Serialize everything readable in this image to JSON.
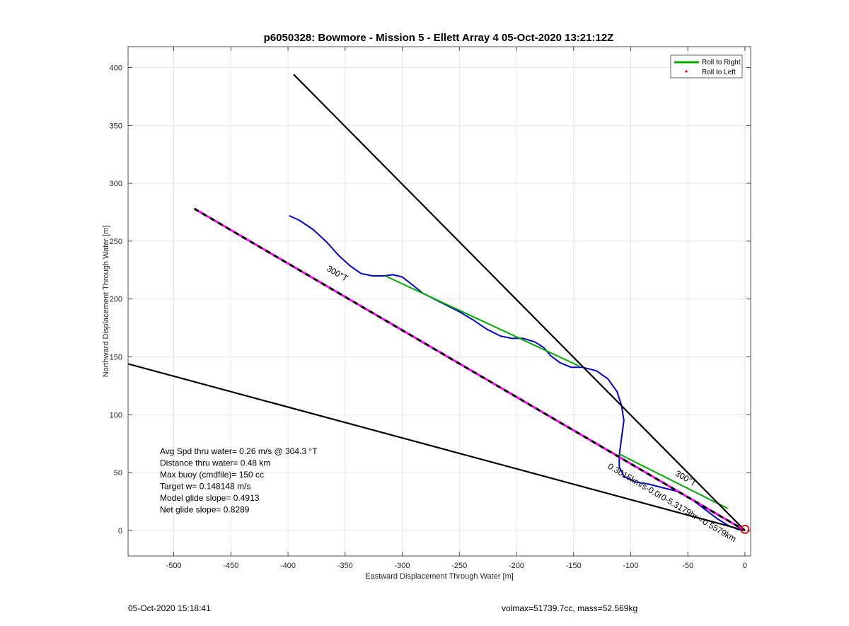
{
  "chart_data": {
    "type": "line",
    "title": "p6050328: Bowmore - Mission 5 - Ellett Array 4 05-Oct-2020 13:21:12Z",
    "xlabel": "Eastward Displacement Through Water [m]",
    "ylabel": "Northward Displacement Through Water [m]",
    "xlim": [
      -540,
      5
    ],
    "ylim": [
      -22,
      418
    ],
    "xticks": [
      -500,
      -450,
      -400,
      -350,
      -300,
      -250,
      -200,
      -150,
      -100,
      -50,
      0
    ],
    "yticks": [
      0,
      50,
      100,
      150,
      200,
      250,
      300,
      350,
      400
    ],
    "grid": true,
    "legend": {
      "placement": "top-right",
      "entries": [
        {
          "label": "Roll to Right",
          "color": "#00aa00",
          "style": "line"
        },
        {
          "label": "Roll to Left",
          "color": "#ff0000",
          "style": "marker"
        }
      ]
    },
    "series": [
      {
        "color": "#0000cc",
        "style": "track",
        "x": [
          -399,
          -390,
          -378,
          -366,
          -356,
          -346,
          -336,
          -326,
          -316,
          -308,
          -300,
          -292,
          -282,
          -272,
          -262,
          -250,
          -238,
          -226,
          -214,
          -204,
          -194,
          -184,
          -176,
          -170,
          -162,
          -152,
          -142,
          -130,
          -120,
          -112,
          -108,
          -106,
          -108,
          -110,
          -110,
          -106,
          -96,
          -84,
          -72,
          -60,
          -48,
          -36,
          -24,
          -14,
          -6,
          0
        ],
        "y": [
          272,
          268,
          260,
          249,
          238,
          229,
          222,
          220,
          220,
          221,
          219,
          213,
          205,
          200,
          195,
          189,
          182,
          174,
          168,
          166,
          166,
          163,
          158,
          151,
          145,
          141,
          141,
          138,
          131,
          120,
          108,
          95,
          80,
          65,
          55,
          47,
          42,
          40,
          37,
          34,
          28,
          19,
          10,
          4,
          1,
          0
        ]
      },
      {
        "color": "#00aa00",
        "style": "solid",
        "x": [
          -315,
          -145
        ],
        "y": [
          220,
          142
        ]
      },
      {
        "color": "#00aa00",
        "style": "solid",
        "x": [
          -110,
          -15
        ],
        "y": [
          66,
          19
        ]
      },
      {
        "color": "#000000",
        "style": "solid",
        "x": [
          -395,
          0
        ],
        "y": [
          394,
          0
        ]
      },
      {
        "color": "#000000",
        "style": "solid",
        "x": [
          -540,
          0
        ],
        "y": [
          144,
          0
        ]
      },
      {
        "color": "#000000",
        "overlay_color": "#ff00ff",
        "style": "dashed-over-magenta",
        "x": [
          -482,
          0
        ],
        "y": [
          278,
          0
        ]
      }
    ],
    "origin_marker": {
      "x": 0,
      "y": 1,
      "color": "#dd0000"
    },
    "annotations": [
      {
        "text": "300°T",
        "x": -358,
        "y": 220
      },
      {
        "text": "300°T",
        "x": -53,
        "y": 43
      },
      {
        "text": "0.3015km/s-0.0r0-5.3179hr =0.5579km",
        "x": -65,
        "y": 22
      }
    ],
    "notes": [
      "Avg Spd thru water=  0.26 m/s @ 304.3 °T",
      "Distance thru water=  0.48 km",
      "Max buoy (cmdfile)= 150 cc",
      "Target w= 0.148148 m/s",
      "Model glide slope= 0.4913",
      "Net glide slope= 0.8289"
    ]
  },
  "footer": {
    "left": "05-Oct-2020 15:18:41",
    "right": "volmax=51739.7cc, mass=52.569kg"
  }
}
